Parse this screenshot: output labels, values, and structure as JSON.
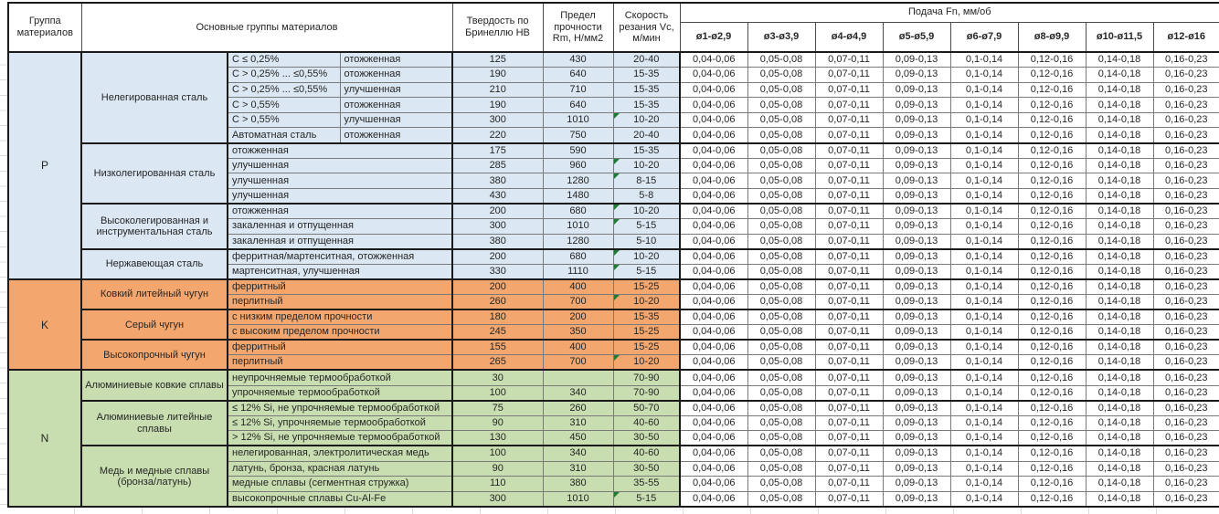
{
  "header": {
    "group_col": "Группа материалов",
    "materials_col": "Основные группы материалов",
    "hardness_col": "Твердость по Бринеллю HB",
    "strength_col": "Предел прочности Rm, Н/мм2",
    "speed_col": "Скорость резания Vc, м/мин",
    "feed_col": "Подача Fn, мм/об",
    "diameters": [
      "ø1-ø2,9",
      "ø3-ø3,9",
      "ø4-ø4,9",
      "ø5-ø5,9",
      "ø6-ø7,9",
      "ø8-ø9,9",
      "ø10-ø11,5",
      "ø12-ø16"
    ]
  },
  "colors": {
    "P": "#dbe7f2",
    "K": "#f3a76f",
    "N": "#c8deb0",
    "marker": "#1f7a33"
  },
  "feed_values": [
    "0,04-0,06",
    "0,05-0,08",
    "0,07-0,11",
    "0,09-0,13",
    "0,1-0,14",
    "0,12-0,16",
    "0,14-0,18",
    "0,16-0,23"
  ],
  "groups": [
    {
      "letter": "P",
      "subgroups": [
        {
          "name": "Нелегированная сталь",
          "rows": [
            {
              "spec": "C ≤ 0,25%",
              "state": "отожженная",
              "hb": "125",
              "rm": "430",
              "vc": "20-40",
              "marker": false
            },
            {
              "spec": "C > 0,25% ... ≤0,55%",
              "state": "отожженная",
              "hb": "190",
              "rm": "640",
              "vc": "15-35",
              "marker": false
            },
            {
              "spec": "C > 0,25% ... ≤0,55%",
              "state": "улучшенная",
              "hb": "210",
              "rm": "710",
              "vc": "15-35",
              "marker": false
            },
            {
              "spec": "C > 0,55%",
              "state": "отожженная",
              "hb": "190",
              "rm": "640",
              "vc": "15-35",
              "marker": false
            },
            {
              "spec": "C > 0,55%",
              "state": "улучшенная",
              "hb": "300",
              "rm": "1010",
              "vc": "10-20",
              "marker": true
            },
            {
              "spec": "Автоматная сталь",
              "state": "отожженная",
              "hb": "220",
              "rm": "750",
              "vc": "20-40",
              "marker": false
            }
          ]
        },
        {
          "name": "Низколегированная сталь",
          "rows": [
            {
              "spec": "отожженная",
              "state": null,
              "hb": "175",
              "rm": "590",
              "vc": "15-35",
              "marker": false
            },
            {
              "spec": "улучшенная",
              "state": null,
              "hb": "285",
              "rm": "960",
              "vc": "10-20",
              "marker": true
            },
            {
              "spec": "улучшенная",
              "state": null,
              "hb": "380",
              "rm": "1280",
              "vc": "8-15",
              "marker": true
            },
            {
              "spec": "улучшенная",
              "state": null,
              "hb": "430",
              "rm": "1480",
              "vc": "5-8",
              "marker": false
            }
          ]
        },
        {
          "name": "Высоколегированная и инструментальная сталь",
          "rows": [
            {
              "spec": "отожженная",
              "state": null,
              "hb": "200",
              "rm": "680",
              "vc": "10-20",
              "marker": true
            },
            {
              "spec": "закаленная и отпущенная",
              "state": null,
              "hb": "300",
              "rm": "1010",
              "vc": "5-15",
              "marker": true
            },
            {
              "spec": "закаленная и отпущенная",
              "state": null,
              "hb": "380",
              "rm": "1280",
              "vc": "5-10",
              "marker": false
            }
          ]
        },
        {
          "name": "Нержавеющая сталь",
          "rows": [
            {
              "spec": "ферритная/мартенситная, отожженная",
              "state": null,
              "hb": "200",
              "rm": "680",
              "vc": "10-20",
              "marker": true
            },
            {
              "spec": "мартенситная, улучшенная",
              "state": null,
              "hb": "330",
              "rm": "1110",
              "vc": "5-15",
              "marker": true
            }
          ]
        }
      ]
    },
    {
      "letter": "K",
      "subgroups": [
        {
          "name": "Ковкий литейный чугун",
          "rows": [
            {
              "spec": "ферритный",
              "state": null,
              "hb": "200",
              "rm": "400",
              "vc": "15-25",
              "marker": false
            },
            {
              "spec": "перлитный",
              "state": null,
              "hb": "260",
              "rm": "700",
              "vc": "10-20",
              "marker": true
            }
          ]
        },
        {
          "name": "Серый чугун",
          "rows": [
            {
              "spec": "с низким пределом прочности",
              "state": null,
              "hb": "180",
              "rm": "200",
              "vc": "15-35",
              "marker": false
            },
            {
              "spec": "с высоким пределом прочности",
              "state": null,
              "hb": "245",
              "rm": "350",
              "vc": "15-25",
              "marker": false
            }
          ]
        },
        {
          "name": "Высокопрочный чугун",
          "rows": [
            {
              "spec": "ферритный",
              "state": null,
              "hb": "155",
              "rm": "400",
              "vc": "15-25",
              "marker": false
            },
            {
              "spec": "перлитный",
              "state": null,
              "hb": "265",
              "rm": "700",
              "vc": "10-20",
              "marker": true
            }
          ]
        }
      ]
    },
    {
      "letter": "N",
      "subgroups": [
        {
          "name": "Алюминиевые ковкие сплавы",
          "rows": [
            {
              "spec": "неупрочняемые термообработкой",
              "state": null,
              "hb": "30",
              "rm": "",
              "vc": "70-90",
              "marker": false
            },
            {
              "spec": "упрочняемые термообработкой",
              "state": null,
              "hb": "100",
              "rm": "340",
              "vc": "70-90",
              "marker": false
            }
          ]
        },
        {
          "name": "Алюминиевые литейные сплавы",
          "rows": [
            {
              "spec": "≤ 12% Si, не упрочняемые термообработкой",
              "state": null,
              "hb": "75",
              "rm": "260",
              "vc": "50-70",
              "marker": false
            },
            {
              "spec": "≤ 12% Si, упрочняемые термообработкой",
              "state": null,
              "hb": "90",
              "rm": "310",
              "vc": "40-60",
              "marker": false
            },
            {
              "spec": "> 12% Si, не упрочняемые термообработкой",
              "state": null,
              "hb": "130",
              "rm": "450",
              "vc": "30-50",
              "marker": false
            }
          ]
        },
        {
          "name": "Медь и медные сплавы (бронза/латунь)",
          "rows": [
            {
              "spec": "нелегированная, электролитическая медь",
              "state": null,
              "hb": "100",
              "rm": "340",
              "vc": "40-60",
              "marker": false
            },
            {
              "spec": "латунь, бронза, красная латунь",
              "state": null,
              "hb": "90",
              "rm": "310",
              "vc": "30-50",
              "marker": false
            },
            {
              "spec": "медные сплавы (сегментная стружка)",
              "state": null,
              "hb": "110",
              "rm": "380",
              "vc": "35-55",
              "marker": false
            },
            {
              "spec": "высокопрочные сплавы Cu-Al-Fe",
              "state": null,
              "hb": "300",
              "rm": "1010",
              "vc": "5-15",
              "marker": true
            }
          ]
        }
      ]
    }
  ]
}
